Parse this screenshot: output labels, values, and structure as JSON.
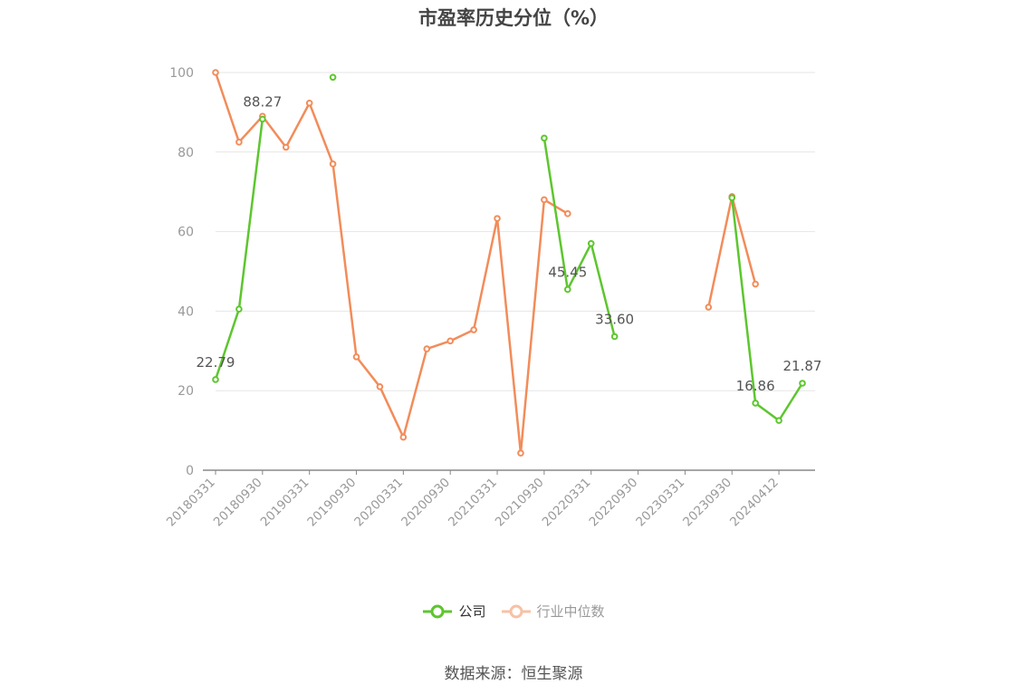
{
  "chart_data": {
    "type": "line",
    "title": "市盈率历史分位（%）",
    "source": "数据来源：恒生聚源",
    "ylim": [
      0,
      100
    ],
    "yticks": [
      "0",
      "20",
      "40",
      "60",
      "80",
      "100"
    ],
    "xtick_labels": [
      "20180331",
      "20180930",
      "20190331",
      "20190930",
      "20200331",
      "20200930",
      "20210331",
      "20210930",
      "20220331",
      "20220930",
      "20230331",
      "20230930",
      "20240412"
    ],
    "grid": true,
    "legend_position": "bottom",
    "series": [
      {
        "name": "公司",
        "color": "#5dc62e",
        "values": [
          22.79,
          40.5,
          88.27,
          null,
          null,
          98.8,
          null,
          null,
          null,
          null,
          null,
          null,
          null,
          null,
          83.5,
          45.45,
          57.0,
          33.6,
          null,
          null,
          null,
          null,
          68.5,
          16.86,
          12.5,
          21.87
        ],
        "labels": [
          "22.79",
          null,
          "88.27",
          null,
          null,
          null,
          null,
          null,
          null,
          null,
          null,
          null,
          null,
          null,
          null,
          "45.45",
          null,
          "33.60",
          null,
          null,
          null,
          null,
          null,
          "16.86",
          null,
          "21.87"
        ]
      },
      {
        "name": "行业中位数",
        "color": "#f28c5a",
        "values": [
          100.0,
          82.5,
          89.0,
          81.2,
          92.3,
          77.0,
          28.5,
          21.0,
          8.3,
          30.5,
          32.5,
          35.3,
          63.3,
          4.3,
          68.0,
          64.5,
          null,
          null,
          null,
          null,
          null,
          41.0,
          68.8,
          46.8,
          null,
          null
        ]
      }
    ]
  }
}
